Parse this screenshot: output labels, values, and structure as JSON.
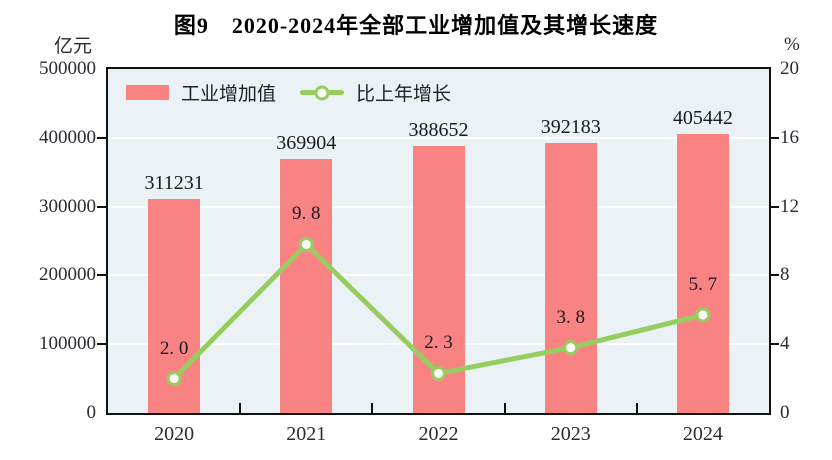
{
  "title": "图9　2020-2024年全部工业增加值及其增长速度",
  "left_axis": {
    "unit": "亿元",
    "ticks": [
      "500000",
      "400000",
      "300000",
      "200000",
      "100000",
      "0"
    ]
  },
  "right_axis": {
    "unit": "%",
    "ticks": [
      "20",
      "16",
      "12",
      "8",
      "4",
      "0"
    ]
  },
  "legend": {
    "bar": {
      "label": "工业增加值"
    },
    "line": {
      "label": "比上年增长"
    }
  },
  "colors": {
    "bar": "#F98383",
    "line": "#97CD60",
    "marker_fill": "#FFFEF7",
    "plot_bg": "#EBF2F6",
    "grid": "#FFFFFF",
    "border": "#111111"
  },
  "chart_data": {
    "type": "bar",
    "title": "图9　2020-2024年全部工业增加值及其增长速度",
    "categories": [
      "2020",
      "2021",
      "2022",
      "2023",
      "2024"
    ],
    "series": [
      {
        "name": "工业增加值",
        "type": "bar",
        "axis": "left",
        "unit": "亿元",
        "values": [
          311231,
          369904,
          388652,
          392183,
          405442
        ],
        "labels": [
          "311231",
          "369904",
          "388652",
          "392183",
          "405442"
        ]
      },
      {
        "name": "比上年增长",
        "type": "line",
        "axis": "right",
        "unit": "%",
        "values": [
          2.0,
          9.8,
          2.3,
          3.8,
          5.7
        ],
        "labels": [
          "2. 0",
          "9. 8",
          "2. 3",
          "3. 8",
          "5. 7"
        ]
      }
    ],
    "left_ylim": [
      0,
      500000
    ],
    "right_ylim": [
      0,
      20
    ],
    "grid": "horizontal",
    "legend_position": "top-left-inside",
    "xlabel": "",
    "ylabel_left": "亿元",
    "ylabel_right": "%"
  }
}
